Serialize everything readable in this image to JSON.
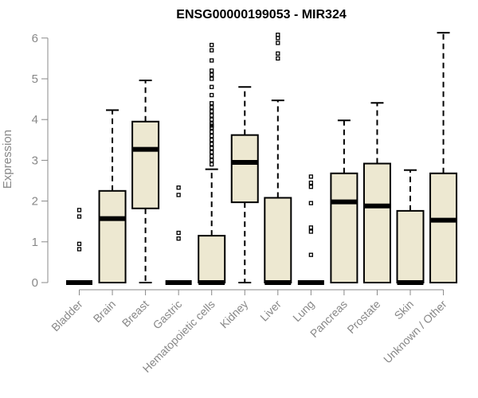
{
  "chart_data": {
    "type": "boxplot",
    "title": "ENSG00000199053 - MIR324",
    "xlabel": "",
    "ylabel": "Expression",
    "ylim": [
      0,
      6.2
    ],
    "yticks": [
      0,
      1,
      2,
      3,
      4,
      5,
      6
    ],
    "grid": false,
    "legend": "none",
    "colors": {
      "box_fill": "#ede8d1",
      "box_stroke": "#000000",
      "axis": "#888888",
      "title": "#000000"
    },
    "categories": [
      "Bladder",
      "Brain",
      "Breast",
      "Gastric",
      "Hematopoietic cells",
      "Kidney",
      "Liver",
      "Lung",
      "Pancreas",
      "Prostate",
      "Skin",
      "Unknown / Other"
    ],
    "boxes": [
      {
        "category": "Bladder",
        "q1": 0,
        "median": 0,
        "q3": 0,
        "whisker_low": 0,
        "whisker_high": 0,
        "outliers": [
          0.82,
          0.95,
          1.62,
          1.78
        ]
      },
      {
        "category": "Brain",
        "q1": 0,
        "median": 1.57,
        "q3": 2.25,
        "whisker_low": 0,
        "whisker_high": 4.23,
        "outliers": []
      },
      {
        "category": "Breast",
        "q1": 1.82,
        "median": 3.27,
        "q3": 3.95,
        "whisker_low": 0,
        "whisker_high": 4.96,
        "outliers": []
      },
      {
        "category": "Gastric",
        "q1": 0,
        "median": 0,
        "q3": 0,
        "whisker_low": 0,
        "whisker_high": 0,
        "outliers": [
          1.08,
          1.22,
          2.15,
          2.33
        ]
      },
      {
        "category": "Hematopoietic cells",
        "q1": 0,
        "median": 0,
        "q3": 1.15,
        "whisker_low": 0,
        "whisker_high": 2.78,
        "outliers": [
          2.9,
          3.0,
          3.1,
          3.2,
          3.3,
          3.4,
          3.5,
          3.6,
          3.7,
          3.8,
          3.85,
          3.9,
          4.0,
          4.1,
          4.2,
          4.3,
          4.4,
          4.6,
          4.8,
          5.0,
          5.1,
          5.2,
          5.45,
          5.7,
          5.83
        ]
      },
      {
        "category": "Kidney",
        "q1": 1.97,
        "median": 2.95,
        "q3": 3.62,
        "whisker_low": 0,
        "whisker_high": 4.8,
        "outliers": []
      },
      {
        "category": "Liver",
        "q1": 0,
        "median": 0,
        "q3": 2.08,
        "whisker_low": 0,
        "whisker_high": 4.47,
        "outliers": [
          5.5,
          5.62,
          5.88,
          6.0,
          6.08
        ]
      },
      {
        "category": "Lung",
        "q1": 0,
        "median": 0,
        "q3": 0,
        "whisker_low": 0,
        "whisker_high": 0,
        "outliers": [
          0.68,
          1.25,
          1.35,
          1.95,
          2.35,
          2.45,
          2.6
        ]
      },
      {
        "category": "Pancreas",
        "q1": 0,
        "median": 1.98,
        "q3": 2.68,
        "whisker_low": 0,
        "whisker_high": 3.98,
        "outliers": []
      },
      {
        "category": "Prostate",
        "q1": 0,
        "median": 1.88,
        "q3": 2.92,
        "whisker_low": 0,
        "whisker_high": 4.41,
        "outliers": []
      },
      {
        "category": "Skin",
        "q1": 0,
        "median": 0,
        "q3": 1.76,
        "whisker_low": 0,
        "whisker_high": 2.76,
        "outliers": []
      },
      {
        "category": "Unknown / Other",
        "q1": 0,
        "median": 1.53,
        "q3": 2.68,
        "whisker_low": 0,
        "whisker_high": 6.13,
        "outliers": []
      }
    ]
  }
}
